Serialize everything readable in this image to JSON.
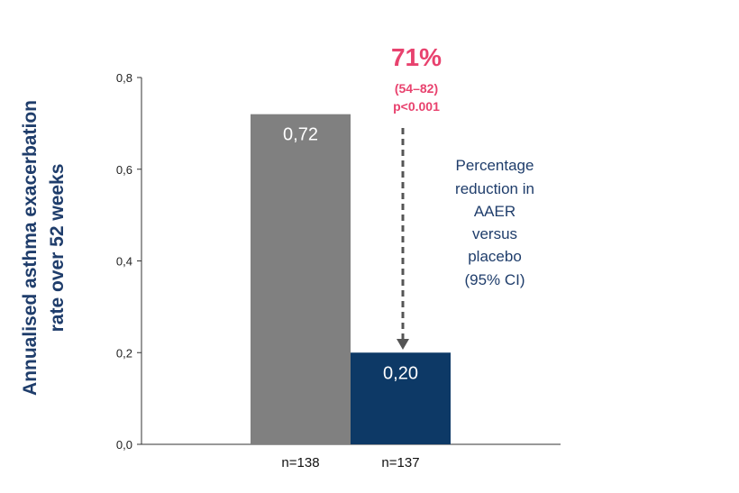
{
  "chart_data": {
    "type": "bar",
    "ylabel_lines": [
      "Annualised asthma exacerbation",
      "rate over 52 weeks"
    ],
    "ylim": [
      0,
      0.8
    ],
    "yticks": [
      {
        "value": 0.0,
        "label": "0,0"
      },
      {
        "value": 0.2,
        "label": "0,2"
      },
      {
        "value": 0.4,
        "label": "0,4"
      },
      {
        "value": 0.6,
        "label": "0,6"
      },
      {
        "value": 0.8,
        "label": "0,8"
      }
    ],
    "categories": [
      "n=138",
      "n=137"
    ],
    "values": [
      0.72,
      0.2
    ],
    "value_labels": [
      "0,72",
      "0,20"
    ],
    "bar_colors": [
      "#808080",
      "#0d3966"
    ],
    "annotation": {
      "percent": "71%",
      "ci": "(54–82)",
      "p_value": "p<0.001",
      "note_lines": [
        "Percentage",
        "reduction in",
        "AAER",
        "versus",
        "placebo",
        "(95% CI)"
      ],
      "accent_color": "#e8426e",
      "note_color": "#1f3d6b"
    }
  }
}
